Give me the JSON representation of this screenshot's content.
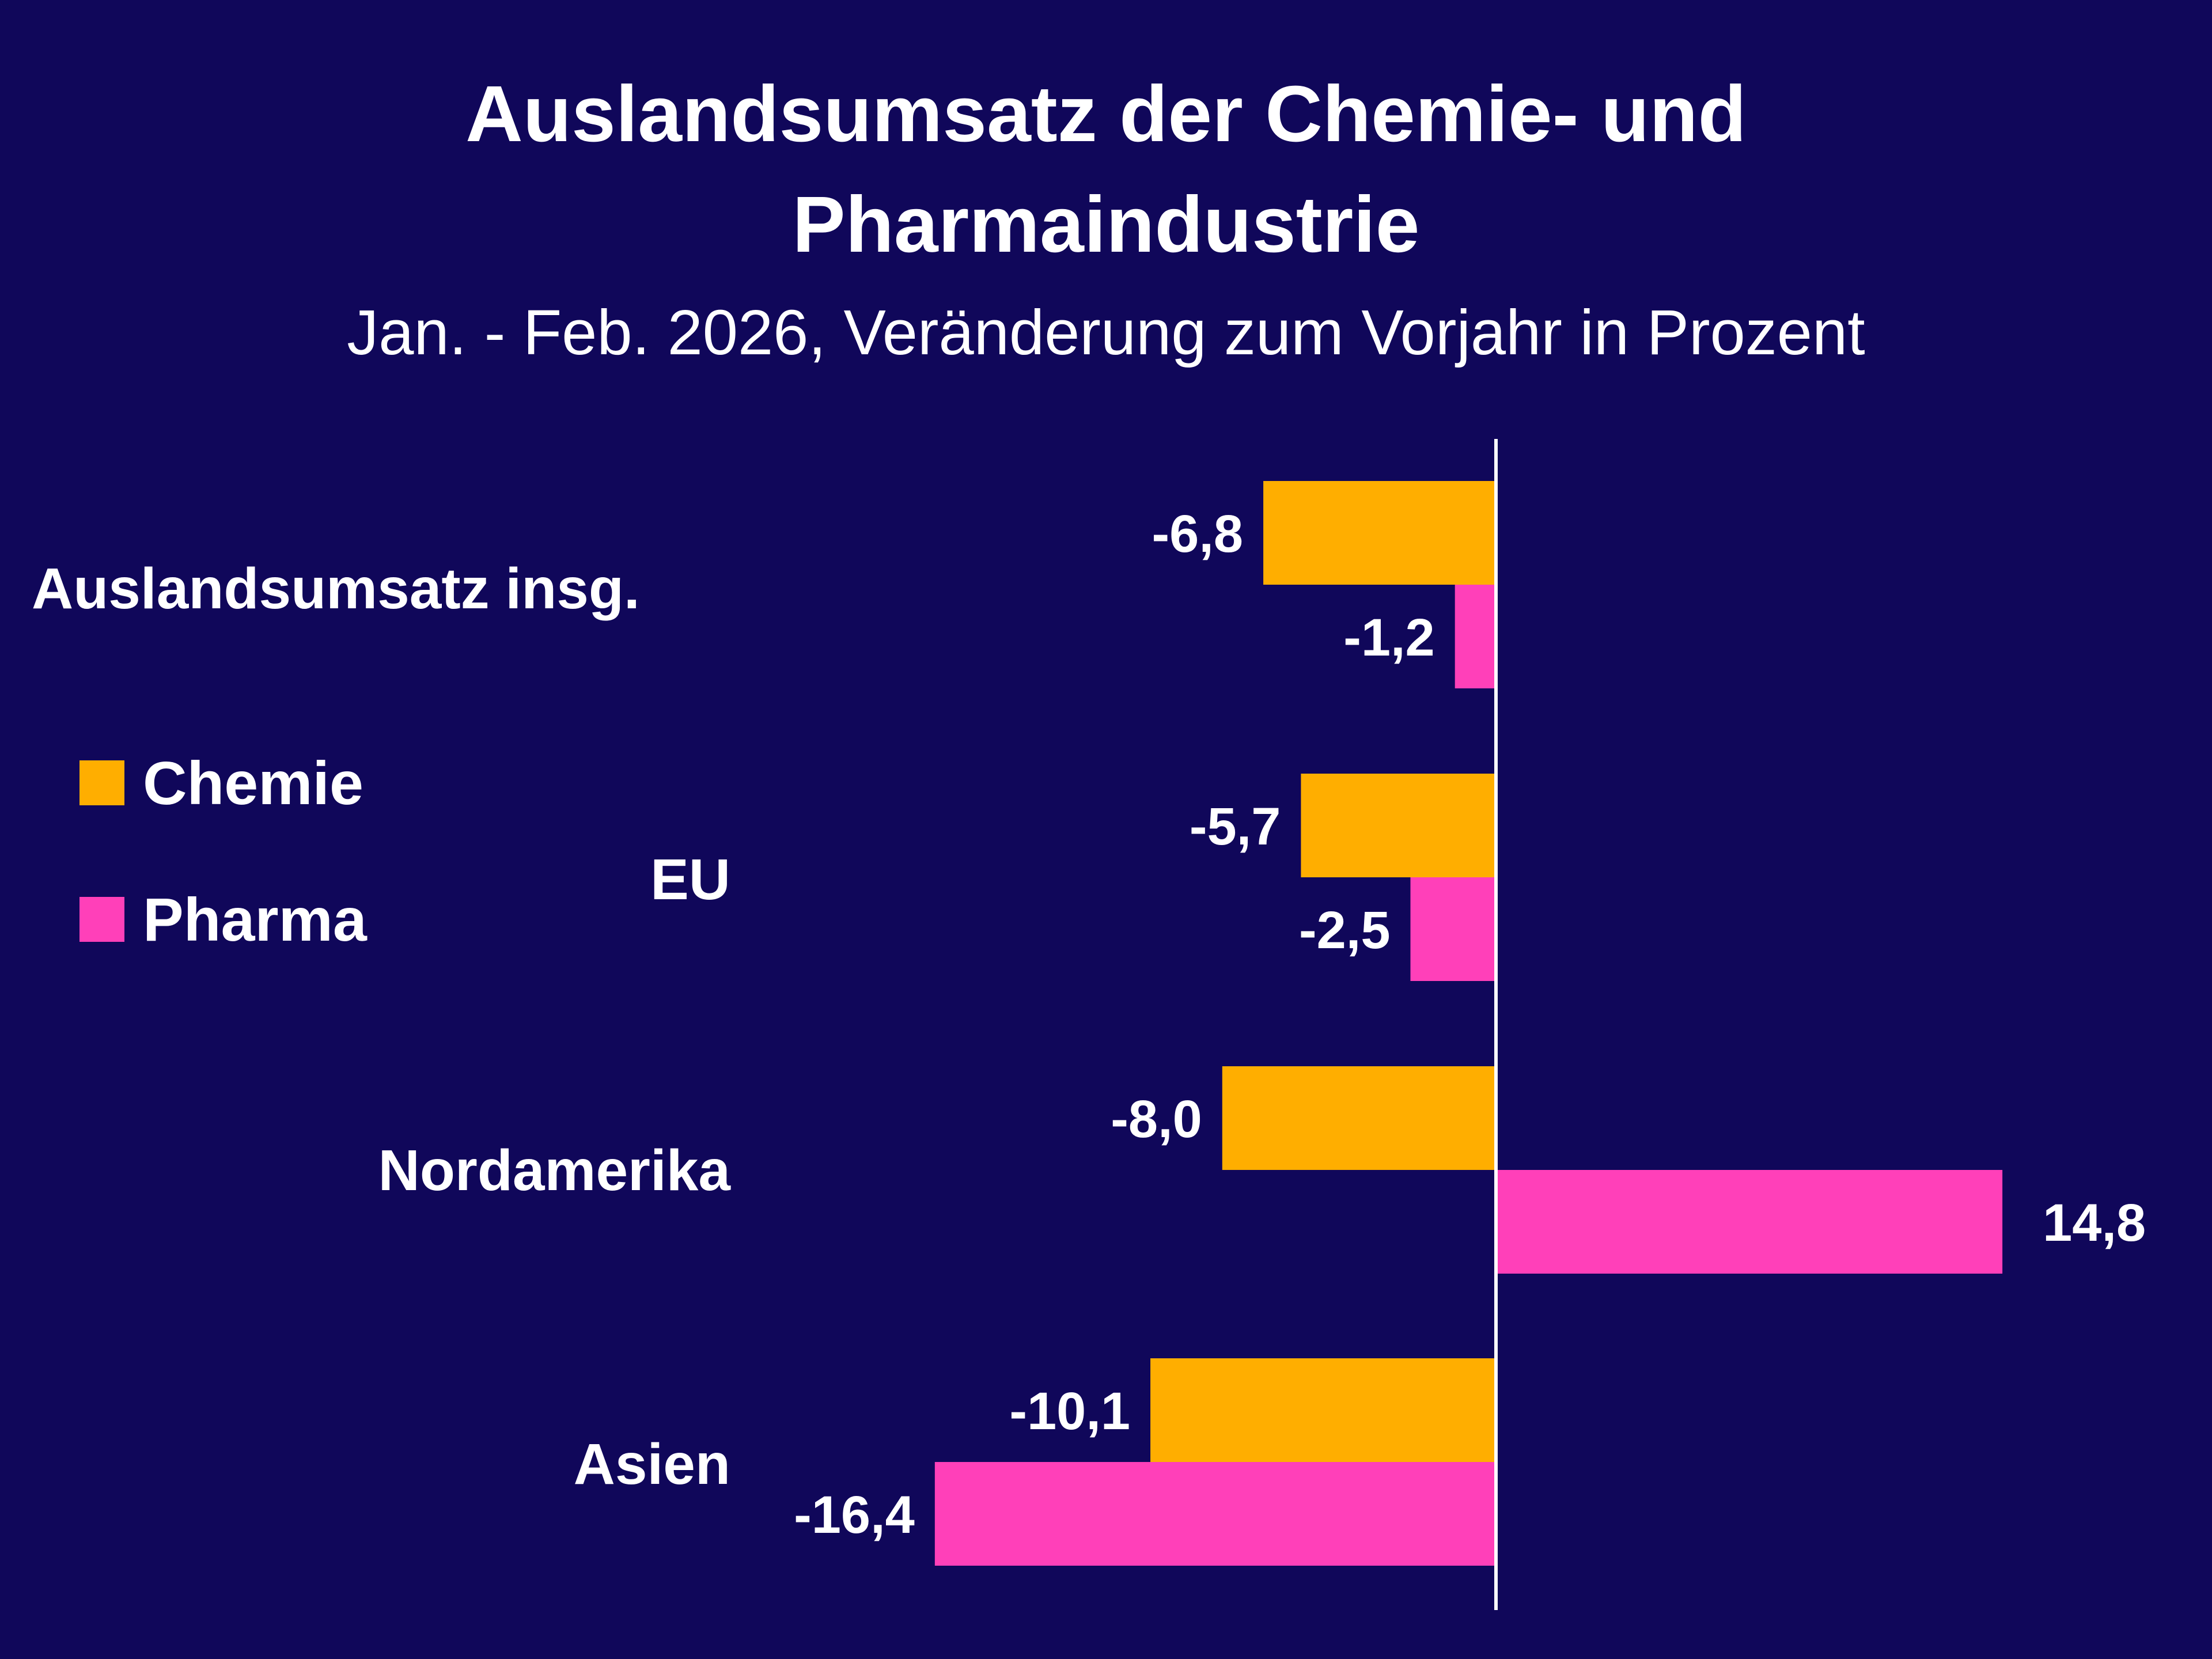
{
  "chart_data": {
    "type": "bar",
    "orientation": "horizontal",
    "title": "Auslandsumsatz der Chemie- und Pharmaindustrie",
    "title_lines": [
      "Auslandsumsatz der Chemie- und",
      "Pharmaindustrie"
    ],
    "subtitle": "Jan. - Feb. 2026, Veränderung zum Vorjahr in Prozent",
    "categories": [
      "Auslandsumsatz insg.",
      "EU",
      "Nordamerika",
      "Asien"
    ],
    "series": [
      {
        "name": "Chemie",
        "color": "#ffae00",
        "values": [
          -6.8,
          -5.7,
          -8.0,
          -10.1
        ],
        "labels": [
          "-6,8",
          "-5,7",
          "-8,0",
          "-10,1"
        ]
      },
      {
        "name": "Pharma",
        "color": "#ff40b9",
        "values": [
          -1.2,
          -2.5,
          14.8,
          -16.4
        ],
        "labels": [
          "-1,2",
          "-2,5",
          "14,8",
          "-16,4"
        ]
      }
    ],
    "xlim": [
      -16.4,
      14.8
    ],
    "grid": false,
    "zero_line": true,
    "legend_placement": "left-middle",
    "background": "#10075a",
    "text_color": "#ffffff"
  }
}
